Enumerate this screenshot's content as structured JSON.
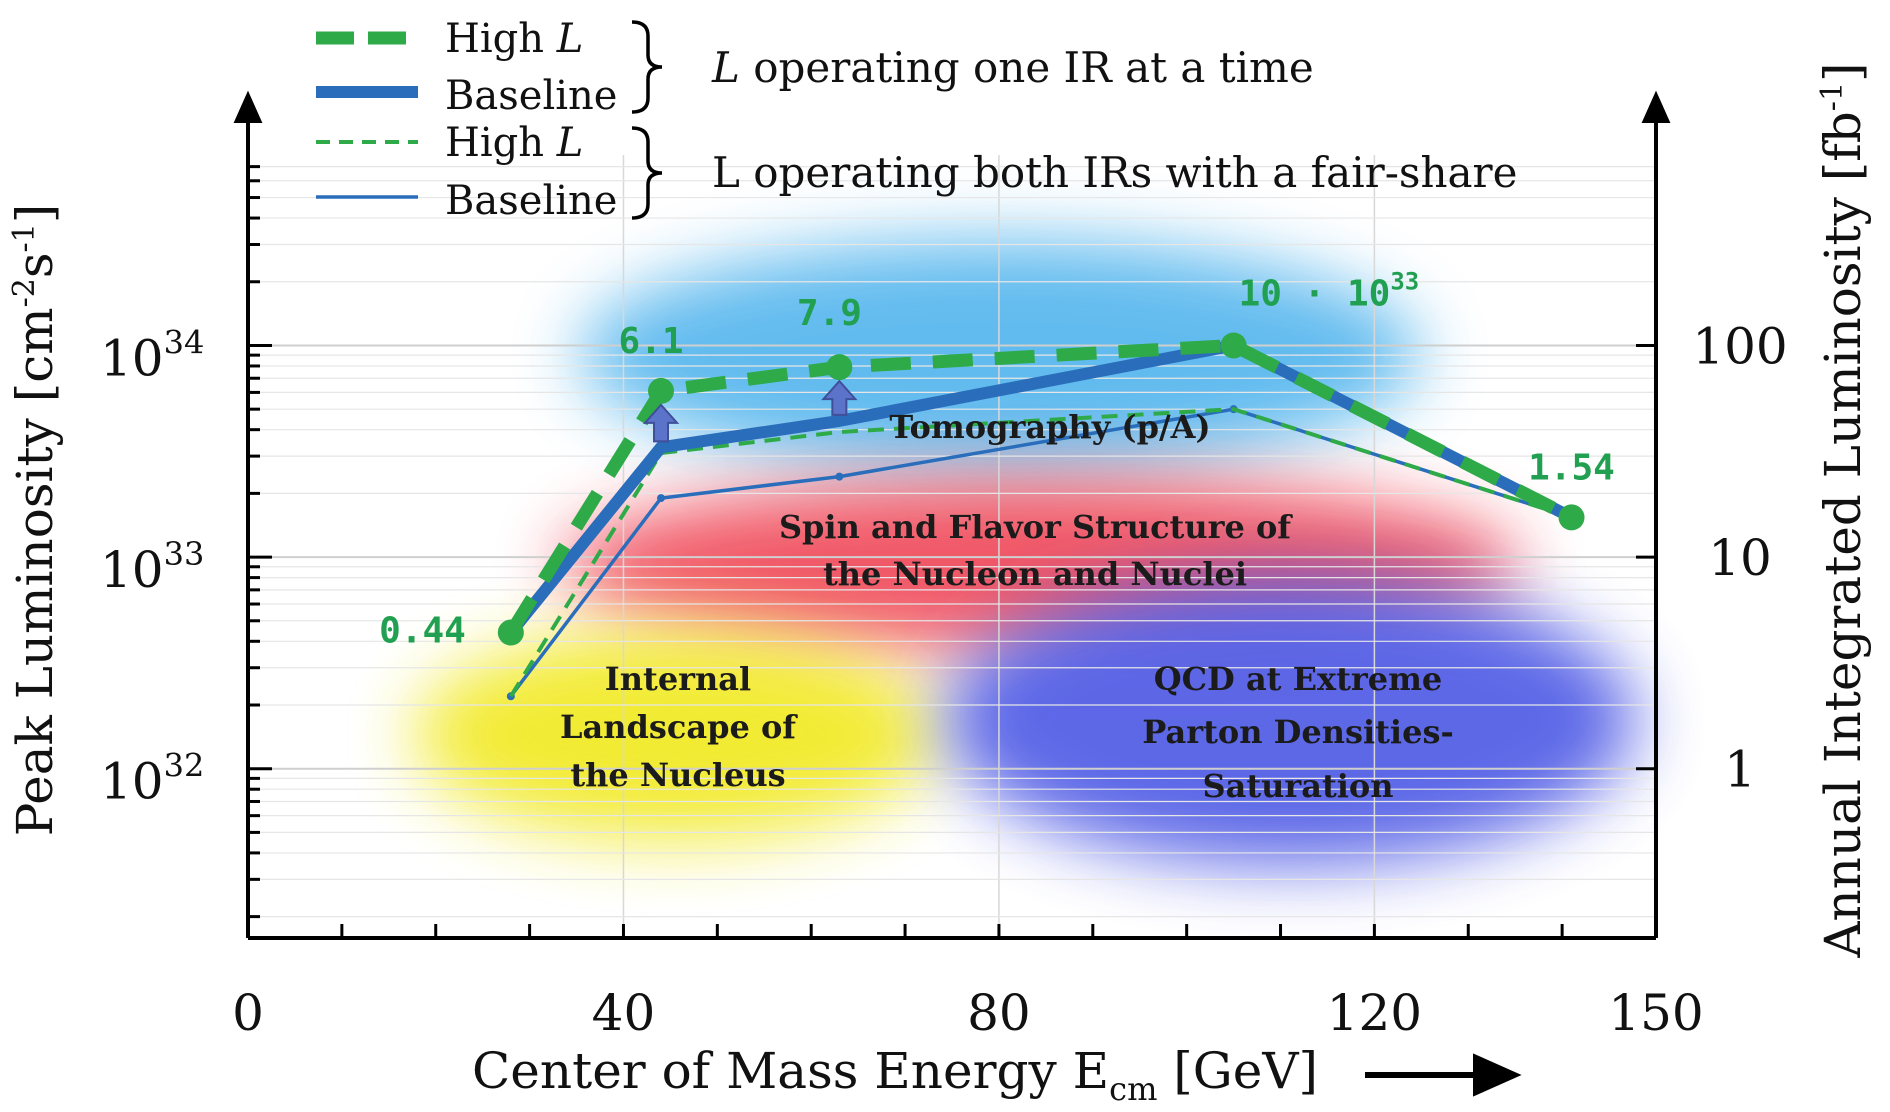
{
  "chart_data": {
    "type": "line",
    "title": "",
    "xlabel": "Center of Mass Energy",
    "xlabel_symbol": "E",
    "xlabel_sub": "cm",
    "xlabel_unit": "[GeV]",
    "ylabel": "Peak Luminosity",
    "ylabel_unit_base": "cm",
    "ylabel_unit_sup1": "-2",
    "ylabel_unit_s": "s",
    "ylabel_unit_sup2": "-1",
    "y2label": "Annual Integrated Luminosity",
    "y2label_unit_base": "fb",
    "y2label_unit_sup": "-1",
    "xlim": [
      0,
      150
    ],
    "ylim_log10": [
      31.2,
      34.9
    ],
    "y2lim_log10": [
      -0.8,
      2.9
    ],
    "x_ticks": [
      0,
      40,
      80,
      120,
      150
    ],
    "x_tick_labels": [
      "0",
      "40",
      "80",
      "120",
      "150"
    ],
    "y_ticks": [
      {
        "exp": 32,
        "base": "10",
        "sup": "32"
      },
      {
        "exp": 33,
        "base": "10",
        "sup": "33"
      },
      {
        "exp": 34,
        "base": "10",
        "sup": "34"
      }
    ],
    "y2_ticks": [
      {
        "log": 0,
        "label": "1"
      },
      {
        "log": 1,
        "label": "10"
      },
      {
        "log": 2,
        "label": "100"
      }
    ],
    "series": [
      {
        "name": "High L (one IR at a time)",
        "color": "#2eaa48",
        "style": "thick-dashed",
        "x": [
          28,
          44,
          63,
          105,
          141
        ],
        "y": [
          4.4e+32,
          6.1e+33,
          7.9e+33,
          1e+34,
          1.54e+33
        ]
      },
      {
        "name": "Baseline (one IR at a time)",
        "color": "#2a6ebb",
        "style": "thick-solid",
        "x": [
          28,
          44,
          63,
          105,
          141
        ],
        "y": [
          4.4e+32,
          3.3e+33,
          4.4e+33,
          1e+34,
          1.54e+33
        ]
      },
      {
        "name": "High L (both IRs fair-share)",
        "color": "#2eaa48",
        "style": "thin-dashed",
        "x": [
          28,
          44,
          63,
          105,
          141
        ],
        "y": [
          2.2e+32,
          3.1e+33,
          3.9e+33,
          5e+33,
          1.54e+33
        ]
      },
      {
        "name": "Baseline (both IRs fair-share)",
        "color": "#2a6ebb",
        "style": "thin-solid",
        "x": [
          28,
          44,
          63,
          105,
          141
        ],
        "y": [
          2.2e+32,
          1.9e+33,
          2.4e+33,
          5e+33,
          1.54e+33
        ]
      }
    ],
    "data_labels": [
      {
        "text": "0.44",
        "x": 28,
        "y": 4.4e+32
      },
      {
        "text": "6.1",
        "x": 44,
        "y": 6.1e+33
      },
      {
        "text": "7.9",
        "x": 63,
        "y": 7.9e+33
      },
      {
        "text": "1.54",
        "x": 141,
        "y": 1.54e+33
      }
    ],
    "peak_label": {
      "base": "10 · 10",
      "sup": "33",
      "x": 105,
      "y": 1e+34
    },
    "arrows_at_x": [
      44,
      63
    ],
    "regions": [
      {
        "name": "tomography",
        "color": "#5ab8ee",
        "lines": [
          "Tomography (p/A)"
        ]
      },
      {
        "name": "spin-flavor",
        "color": "#f0505e",
        "lines": [
          "Spin and Flavor Structure of",
          "the Nucleon and Nuclei"
        ]
      },
      {
        "name": "internal-landscape",
        "color": "#f2ea2a",
        "lines": [
          "Internal",
          "Landscape of",
          "the Nucleus"
        ]
      },
      {
        "name": "qcd-saturation",
        "color": "#5560e6",
        "lines": [
          "QCD at Extreme",
          "Parton Densities-",
          "Saturation"
        ]
      }
    ],
    "legend": {
      "placement": "top-left",
      "entries": [
        {
          "text": "High ",
          "italic": "L",
          "color": "#2eaa48",
          "style": "thick-dashed"
        },
        {
          "text": "Baseline",
          "italic": "",
          "color": "#2a6ebb",
          "style": "thick-solid"
        },
        {
          "text": "High ",
          "italic": "L",
          "color": "#2eaa48",
          "style": "thin-dashed"
        },
        {
          "text": "Baseline",
          "italic": "",
          "color": "#2a6ebb",
          "style": "thin-solid"
        }
      ],
      "groups": [
        {
          "italic": "L",
          "text": " operating one IR at a time"
        },
        {
          "italic": "",
          "text": "L operating both IRs with a fair-share"
        }
      ]
    }
  }
}
